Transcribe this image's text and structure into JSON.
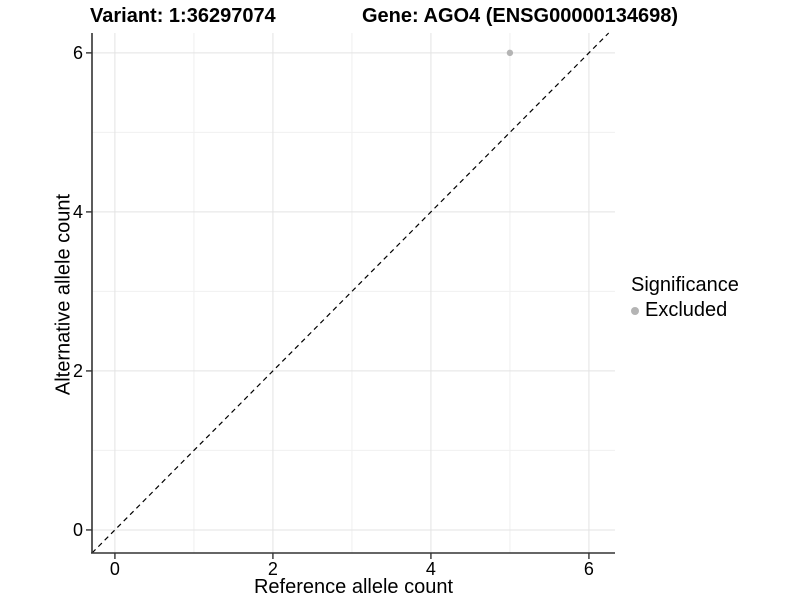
{
  "chart_data": {
    "type": "scatter",
    "titles": {
      "variant": "Variant: 1:36297074",
      "gene": "Gene: AGO4 (ENSG00000134698)"
    },
    "xlabel": "Reference allele count",
    "ylabel": "Alternative allele count",
    "xlim": [
      -0.29,
      6.33
    ],
    "ylim": [
      -0.29,
      6.25
    ],
    "x_ticks": [
      0,
      2,
      4,
      6
    ],
    "y_ticks": [
      0,
      2,
      4,
      6
    ],
    "x_minor_ticks": [
      1,
      3,
      5
    ],
    "y_minor_ticks": [
      1,
      3,
      5
    ],
    "grid": "major+minor",
    "points": [
      {
        "x": 5,
        "y": 6,
        "series": "Excluded"
      }
    ],
    "identity_line": {
      "slope": 1,
      "intercept": 0,
      "style": "dashed",
      "color": "#000000"
    },
    "legend": {
      "title": "Significance",
      "position": "right",
      "items": [
        {
          "label": "Excluded",
          "color": "#b4b4b4",
          "marker": "circle"
        }
      ]
    },
    "colors": {
      "point": "#b4b4b4",
      "axis": "#333333",
      "grid_major": "#e3e3e3",
      "grid_minor": "#f0f0f0",
      "background": "#ffffff",
      "text": "#000000"
    }
  }
}
